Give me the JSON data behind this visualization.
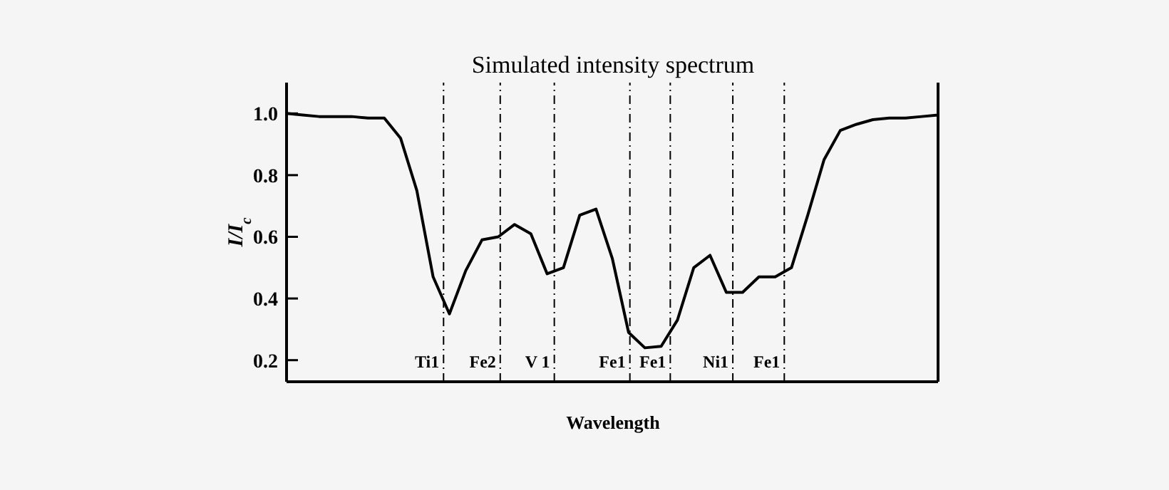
{
  "chart_data": {
    "type": "line",
    "title": "Simulated intensity spectrum",
    "xlabel": "Wavelength",
    "ylabel": "I/I$_{c}$",
    "categories": [
      null,
      null,
      null,
      null,
      null,
      null,
      null,
      null,
      null,
      null,
      null,
      null,
      null,
      null,
      null,
      null,
      null,
      null,
      null,
      null,
      null,
      null,
      null,
      null,
      null,
      null,
      null,
      null,
      null,
      null,
      null,
      null,
      null,
      null,
      null,
      null,
      null,
      null,
      null,
      null,
      null
    ],
    "series": [
      {
        "color": "#000000",
        "values": [
          1.0,
          0.995,
          0.99,
          0.99,
          0.99,
          0.985,
          0.985,
          0.92,
          0.75,
          0.47,
          0.35,
          0.49,
          0.59,
          0.6,
          0.64,
          0.61,
          0.48,
          0.5,
          0.67,
          0.69,
          0.53,
          0.29,
          0.24,
          0.245,
          0.33,
          0.5,
          0.54,
          0.42,
          0.42,
          0.47,
          0.47,
          0.5,
          0.67,
          0.85,
          0.945,
          0.965,
          0.98,
          0.985,
          0.985,
          0.99,
          0.995
        ]
      }
    ],
    "ylim": [
      0.13,
      1.1
    ],
    "yticks": [
      0.2,
      0.4,
      0.6,
      0.8,
      {
        "value": 1,
        "label": "1.0"
      }
    ],
    "grid": false,
    "legend": false,
    "marker": "none",
    "line_style": "solid",
    "annotations": [
      "Ti1",
      "Fe2",
      "V 1",
      "Fe1",
      "Fe1",
      "Ni1",
      "Fe1"
    ]
  }
}
